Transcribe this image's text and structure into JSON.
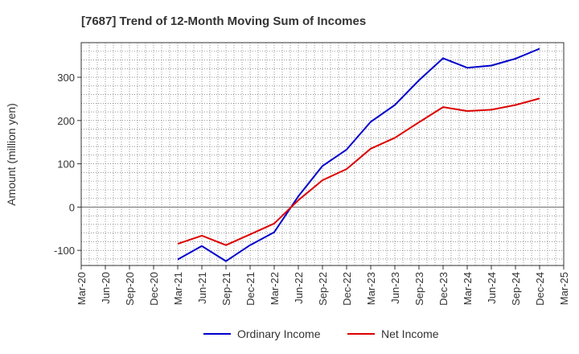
{
  "chart_data": {
    "type": "line",
    "title": "[7687]  Trend of 12-Month Moving Sum of Incomes",
    "xlabel": "",
    "ylabel": "Amount (million yen)",
    "categories": [
      "Mar-20",
      "Jun-20",
      "Sep-20",
      "Dec-20",
      "Mar-21",
      "Jun-21",
      "Sep-21",
      "Dec-21",
      "Mar-22",
      "Jun-22",
      "Sep-22",
      "Dec-22",
      "Mar-23",
      "Jun-23",
      "Sep-23",
      "Dec-23",
      "Mar-24",
      "Jun-24",
      "Sep-24",
      "Dec-24",
      "Mar-25"
    ],
    "ylim": [
      -135,
      380
    ],
    "yticks": [
      -100,
      0,
      100,
      200,
      300
    ],
    "grid": true,
    "legend_position": "bottom",
    "series": [
      {
        "name": "Ordinary Income",
        "color": "#0000cc",
        "values": [
          null,
          null,
          null,
          null,
          -121,
          -90,
          -125,
          -88,
          -58,
          25,
          95,
          133,
          197,
          236,
          293,
          344,
          322,
          327,
          343,
          366,
          null
        ]
      },
      {
        "name": "Net Income",
        "color": "#dd0000",
        "values": [
          null,
          null,
          null,
          null,
          -85,
          -66,
          -88,
          -63,
          -38,
          16,
          62,
          88,
          135,
          160,
          196,
          231,
          222,
          225,
          236,
          251,
          null
        ]
      }
    ]
  }
}
